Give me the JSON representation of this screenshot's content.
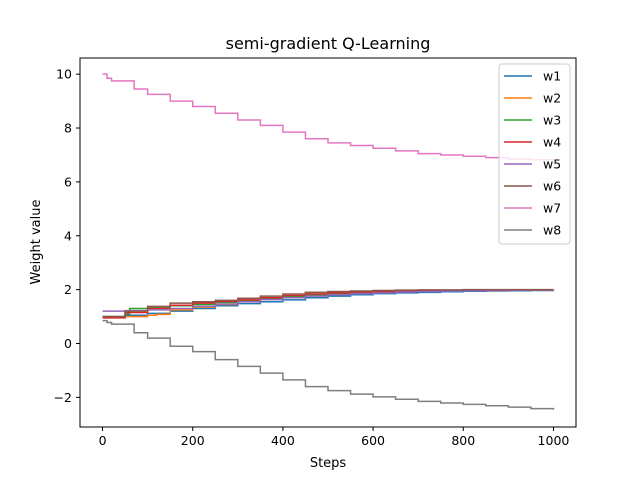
{
  "chart_data": {
    "type": "line",
    "title": "semi-gradient Q-Learning",
    "xlabel": "Steps",
    "ylabel": "Weight value",
    "xlim": [
      -50,
      1050
    ],
    "ylim": [
      -3.1,
      10.6
    ],
    "xticks": [
      0,
      200,
      400,
      600,
      800,
      1000
    ],
    "xtick_labels": [
      "0",
      "200",
      "400",
      "600",
      "800",
      "1000"
    ],
    "yticks": [
      -2,
      0,
      2,
      4,
      6,
      8,
      10
    ],
    "ytick_labels": [
      "−2",
      "0",
      "2",
      "4",
      "6",
      "8",
      "10"
    ],
    "grid": false,
    "legend_position": "top-right",
    "series": [
      {
        "name": "w1",
        "color": "#1f77b4",
        "step": true,
        "x": [
          0,
          50,
          100,
          150,
          200,
          250,
          300,
          350,
          400,
          450,
          500,
          550,
          600,
          650,
          700,
          750,
          800,
          850,
          900,
          950,
          1000
        ],
        "y": [
          1.0,
          1.05,
          1.12,
          1.2,
          1.3,
          1.4,
          1.48,
          1.55,
          1.62,
          1.7,
          1.76,
          1.81,
          1.85,
          1.88,
          1.9,
          1.92,
          1.94,
          1.95,
          1.96,
          1.97,
          1.98
        ]
      },
      {
        "name": "w2",
        "color": "#ff7f0e",
        "step": true,
        "x": [
          0,
          50,
          100,
          120,
          150,
          200,
          250,
          300,
          350,
          400,
          450,
          500,
          550,
          600,
          650,
          700,
          750,
          800,
          850,
          900,
          950,
          1000
        ],
        "y": [
          1.0,
          1.0,
          1.05,
          1.08,
          1.25,
          1.35,
          1.45,
          1.55,
          1.65,
          1.75,
          1.9,
          1.92,
          1.93,
          1.94,
          1.95,
          1.96,
          1.96,
          1.97,
          1.97,
          1.98,
          1.98,
          1.98
        ]
      },
      {
        "name": "w3",
        "color": "#2ca02c",
        "step": true,
        "x": [
          0,
          50,
          60,
          100,
          150,
          200,
          250,
          300,
          350,
          400,
          450,
          500,
          550,
          600,
          650,
          700,
          750,
          800,
          850,
          900,
          950,
          1000
        ],
        "y": [
          1.0,
          1.1,
          1.3,
          1.35,
          1.4,
          1.45,
          1.52,
          1.6,
          1.68,
          1.75,
          1.8,
          1.85,
          1.88,
          1.91,
          1.93,
          1.95,
          1.96,
          1.97,
          1.98,
          1.98,
          1.99,
          1.99
        ]
      },
      {
        "name": "w4",
        "color": "#d62728",
        "step": true,
        "x": [
          0,
          50,
          100,
          150,
          200,
          250,
          300,
          350,
          400,
          450,
          500,
          550,
          600,
          650,
          700,
          750,
          800,
          850,
          900,
          950,
          1000
        ],
        "y": [
          0.95,
          1.15,
          1.3,
          1.42,
          1.5,
          1.56,
          1.62,
          1.7,
          1.78,
          1.84,
          1.88,
          1.91,
          1.93,
          1.95,
          1.96,
          1.97,
          1.98,
          1.98,
          1.99,
          1.99,
          1.99
        ]
      },
      {
        "name": "w5",
        "color": "#9467bd",
        "step": true,
        "x": [
          0,
          50,
          100,
          150,
          200,
          250,
          300,
          350,
          400,
          450,
          500,
          550,
          600,
          650,
          700,
          750,
          800,
          850,
          900,
          950,
          1000
        ],
        "y": [
          1.2,
          1.22,
          1.25,
          1.3,
          1.38,
          1.46,
          1.55,
          1.63,
          1.7,
          1.76,
          1.81,
          1.85,
          1.88,
          1.91,
          1.93,
          1.95,
          1.96,
          1.97,
          1.98,
          1.98,
          1.99
        ]
      },
      {
        "name": "w6",
        "color": "#8c564b",
        "step": true,
        "x": [
          0,
          50,
          100,
          150,
          200,
          250,
          300,
          350,
          400,
          450,
          500,
          550,
          600,
          650,
          700,
          750,
          800,
          850,
          900,
          950,
          1000
        ],
        "y": [
          1.0,
          1.2,
          1.38,
          1.5,
          1.55,
          1.6,
          1.68,
          1.76,
          1.84,
          1.9,
          1.93,
          1.95,
          1.97,
          1.98,
          1.99,
          1.99,
          2.0,
          2.0,
          2.0,
          2.0,
          2.0
        ]
      },
      {
        "name": "w7",
        "color": "#e377c2",
        "step": true,
        "x": [
          0,
          10,
          20,
          60,
          70,
          100,
          150,
          200,
          250,
          300,
          350,
          400,
          450,
          500,
          550,
          600,
          650,
          700,
          750,
          800,
          850,
          900,
          950,
          1000
        ],
        "y": [
          10.0,
          9.85,
          9.75,
          9.75,
          9.45,
          9.25,
          9.0,
          8.8,
          8.55,
          8.3,
          8.1,
          7.85,
          7.6,
          7.45,
          7.35,
          7.25,
          7.15,
          7.05,
          7.0,
          6.95,
          6.9,
          6.85,
          6.82,
          6.8
        ]
      },
      {
        "name": "w8",
        "color": "#7f7f7f",
        "step": true,
        "x": [
          0,
          10,
          20,
          60,
          70,
          100,
          150,
          200,
          250,
          300,
          350,
          400,
          450,
          500,
          550,
          600,
          650,
          700,
          750,
          800,
          850,
          900,
          950,
          1000
        ],
        "y": [
          0.85,
          0.78,
          0.72,
          0.72,
          0.4,
          0.2,
          -0.1,
          -0.3,
          -0.6,
          -0.85,
          -1.1,
          -1.35,
          -1.6,
          -1.75,
          -1.88,
          -1.98,
          -2.07,
          -2.15,
          -2.21,
          -2.26,
          -2.31,
          -2.36,
          -2.42,
          -2.46
        ]
      }
    ]
  }
}
